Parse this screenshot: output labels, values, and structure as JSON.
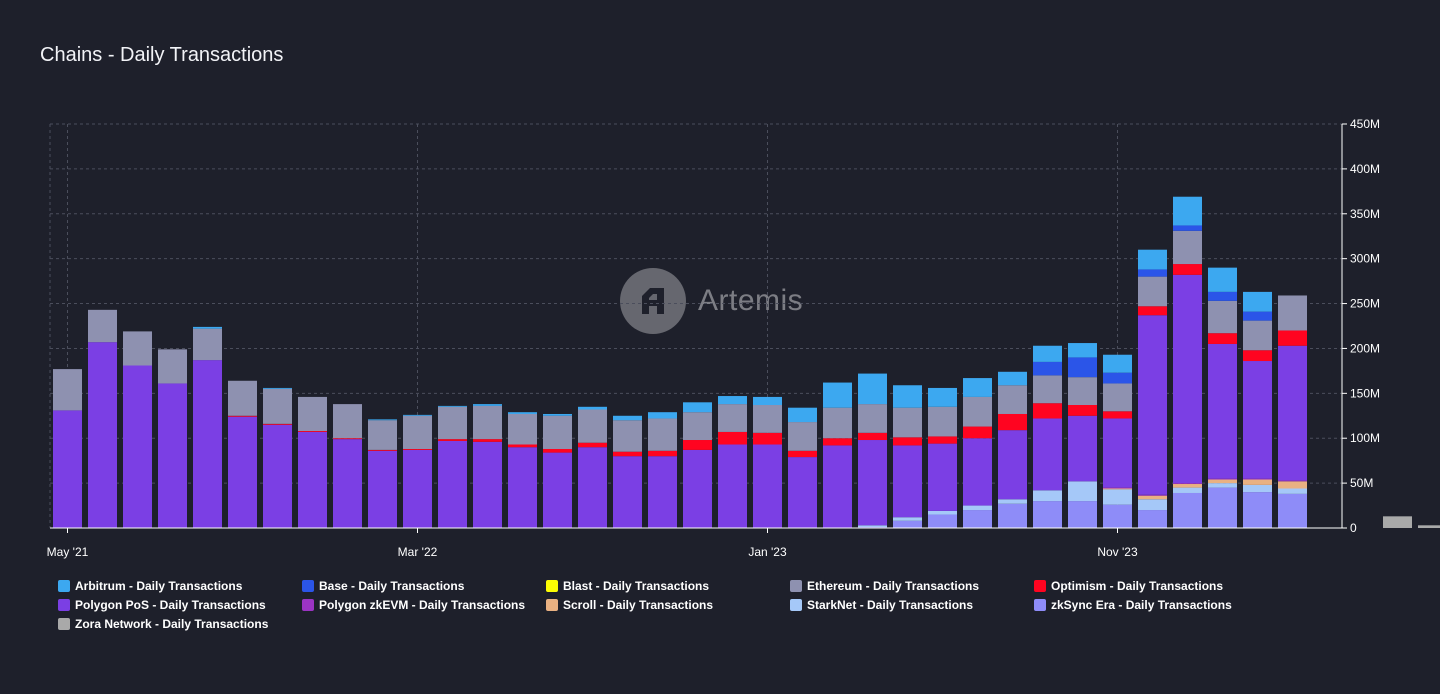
{
  "title": "Chains - Daily Transactions",
  "watermark": "Artemis",
  "chart_data": {
    "type": "bar",
    "stacked": true,
    "title": "Chains - Daily Transactions",
    "ylim": [
      0,
      450
    ],
    "yunit": "M",
    "y_ticks": [
      0,
      50,
      100,
      150,
      200,
      250,
      300,
      350,
      400,
      450
    ],
    "y_tick_labels": [
      "0",
      "50M",
      "100M",
      "150M",
      "200M",
      "250M",
      "300M",
      "350M",
      "400M",
      "450M"
    ],
    "y_axis_side": "right",
    "grid": true,
    "legend_position": "bottom",
    "x_tick_labels": [
      {
        "label": "May '21",
        "index": 0
      },
      {
        "label": "Mar '22",
        "index": 10
      },
      {
        "label": "Jan '23",
        "index": 20
      },
      {
        "label": "Nov '23",
        "index": 30
      }
    ],
    "categories": [
      "2021-05",
      "2021-06",
      "2021-07",
      "2021-08",
      "2021-09",
      "2021-10",
      "2021-11",
      "2021-12",
      "2022-01",
      "2022-02",
      "2022-03",
      "2022-04",
      "2022-05",
      "2022-06",
      "2022-07",
      "2022-08",
      "2022-09",
      "2022-10",
      "2022-11",
      "2022-12",
      "2023-01",
      "2023-02",
      "2023-03",
      "2023-04",
      "2023-05",
      "2023-06",
      "2023-07",
      "2023-08",
      "2023-09",
      "2023-10",
      "2023-11",
      "2023-12",
      "2024-01",
      "2024-02",
      "2024-03",
      "2024-04",
      "2024-05",
      "2024-06",
      "2024-07",
      "2024-08"
    ],
    "series": [
      {
        "name": "Zora Network - Daily Transactions",
        "color": "#a9a9a9",
        "values": [
          0,
          0,
          0,
          0,
          0,
          0,
          0,
          0,
          0,
          0,
          0,
          0,
          0,
          0,
          0,
          0,
          0,
          0,
          0,
          0,
          0,
          0,
          0,
          0,
          0,
          0,
          0,
          0,
          0,
          0,
          0,
          0,
          0,
          0,
          0,
          0,
          0,
          0,
          13,
          3
        ]
      },
      {
        "name": "zkSync Era - Daily Transactions",
        "color": "#8e8cf8",
        "values": [
          0,
          0,
          0,
          0,
          0,
          0,
          0,
          0,
          0,
          0,
          0,
          0,
          0,
          0,
          0,
          0,
          0,
          0,
          0,
          0,
          0,
          0,
          0,
          1,
          8,
          15,
          20,
          27,
          30,
          30,
          26,
          20,
          39,
          45,
          40,
          38,
          0,
          0,
          0,
          0
        ]
      },
      {
        "name": "StarkNet - Daily Transactions",
        "color": "#a5c8f8",
        "values": [
          0,
          0,
          0,
          0,
          0,
          0,
          0,
          0,
          0,
          0,
          0,
          0,
          0,
          0,
          0,
          0,
          0,
          0,
          0,
          0,
          0,
          0,
          0,
          2,
          4,
          4,
          5,
          5,
          12,
          22,
          17,
          12,
          6,
          5,
          8,
          6,
          0,
          0,
          0,
          0
        ]
      },
      {
        "name": "Scroll - Daily Transactions",
        "color": "#e9b182",
        "values": [
          0,
          0,
          0,
          0,
          0,
          0,
          0,
          0,
          0,
          0,
          0,
          0,
          0,
          0,
          0,
          0,
          0,
          0,
          0,
          0,
          0,
          0,
          0,
          0,
          0,
          0,
          0,
          0,
          0,
          0,
          1,
          4,
          4,
          4,
          6,
          8,
          0,
          0,
          0,
          0
        ]
      },
      {
        "name": "Polygon zkEVM - Daily Transactions",
        "color": "#9b34c3",
        "values": [
          0,
          0,
          0,
          0,
          0,
          0,
          0,
          0,
          0,
          0,
          0,
          0,
          0,
          0,
          0,
          0,
          0,
          0,
          0,
          0,
          0,
          0,
          0,
          0,
          0,
          0,
          0,
          0,
          0,
          0,
          1,
          1,
          1,
          1,
          1,
          1,
          0,
          0,
          0,
          0
        ]
      },
      {
        "name": "Polygon PoS - Daily Transactions",
        "color": "#7b3fe4",
        "values": [
          131,
          207,
          181,
          161,
          187,
          124,
          115,
          107,
          99,
          86,
          87,
          97,
          96,
          90,
          84,
          90,
          80,
          80,
          87,
          93,
          93,
          79,
          92,
          95,
          80,
          75,
          75,
          77,
          80,
          73,
          77,
          200,
          232,
          150,
          131,
          150,
          0,
          0,
          0,
          0
        ]
      },
      {
        "name": "Optimism - Daily Transactions",
        "color": "#ff0420",
        "values": [
          0,
          0,
          0,
          0,
          0,
          1,
          1,
          1,
          1,
          1,
          1,
          2,
          3,
          3,
          4,
          5,
          5,
          6,
          11,
          14,
          13,
          7,
          8,
          8,
          9,
          8,
          13,
          18,
          17,
          12,
          8,
          10,
          12,
          12,
          12,
          17,
          0,
          0,
          0,
          0
        ]
      },
      {
        "name": "Ethereum - Daily Transactions",
        "color": "#8e91b0",
        "values": [
          46,
          36,
          38,
          38,
          35,
          39,
          39,
          38,
          38,
          33,
          37,
          36,
          37,
          34,
          37,
          37,
          35,
          36,
          31,
          31,
          31,
          32,
          34,
          32,
          33,
          33,
          33,
          32,
          31,
          31,
          31,
          33,
          37,
          36,
          33,
          39,
          0,
          0,
          0,
          0
        ]
      },
      {
        "name": "Blast - Daily Transactions",
        "color": "#fcfc03",
        "values": [
          0,
          0,
          0,
          0,
          0,
          0,
          0,
          0,
          0,
          0,
          0,
          0,
          0,
          0,
          0,
          0,
          0,
          0,
          0,
          0,
          0,
          0,
          0,
          0,
          0,
          0,
          0,
          0,
          0,
          0,
          0,
          0,
          0,
          0,
          0,
          0,
          0,
          0,
          0,
          0
        ]
      },
      {
        "name": "Base - Daily Transactions",
        "color": "#2b55e8",
        "values": [
          0,
          0,
          0,
          0,
          0,
          0,
          0,
          0,
          0,
          0,
          0,
          0,
          0,
          0,
          0,
          0,
          0,
          0,
          0,
          0,
          0,
          0,
          0,
          0,
          0,
          0,
          0,
          0,
          15,
          22,
          12,
          8,
          6,
          10,
          10,
          0,
          0,
          0,
          0,
          0
        ]
      },
      {
        "name": "Arbitrum - Daily Transactions",
        "color": "#3ca8f0",
        "values": [
          0,
          0,
          0,
          0,
          2,
          0,
          1,
          0,
          0,
          1,
          1,
          1,
          2,
          2,
          2,
          3,
          5,
          7,
          11,
          9,
          9,
          16,
          28,
          34,
          25,
          21,
          21,
          15,
          18,
          16,
          20,
          22,
          32,
          27,
          22,
          0,
          0,
          0,
          0,
          0
        ]
      }
    ]
  },
  "legend": [
    {
      "label": "Arbitrum - Daily Transactions",
      "color": "#3ca8f0"
    },
    {
      "label": "Base - Daily Transactions",
      "color": "#2b55e8"
    },
    {
      "label": "Blast - Daily Transactions",
      "color": "#fcfc03"
    },
    {
      "label": "Ethereum - Daily Transactions",
      "color": "#8e91b0"
    },
    {
      "label": "Optimism - Daily Transactions",
      "color": "#ff0420"
    },
    {
      "label": "Polygon PoS - Daily Transactions",
      "color": "#7b3fe4"
    },
    {
      "label": "Polygon zkEVM - Daily Transactions",
      "color": "#9b34c3"
    },
    {
      "label": "Scroll - Daily Transactions",
      "color": "#e9b182"
    },
    {
      "label": "StarkNet - Daily Transactions",
      "color": "#a5c8f8"
    },
    {
      "label": "zkSync Era - Daily Transactions",
      "color": "#8e8cf8"
    },
    {
      "label": "Zora Network - Daily Transactions",
      "color": "#a9a9a9"
    }
  ]
}
